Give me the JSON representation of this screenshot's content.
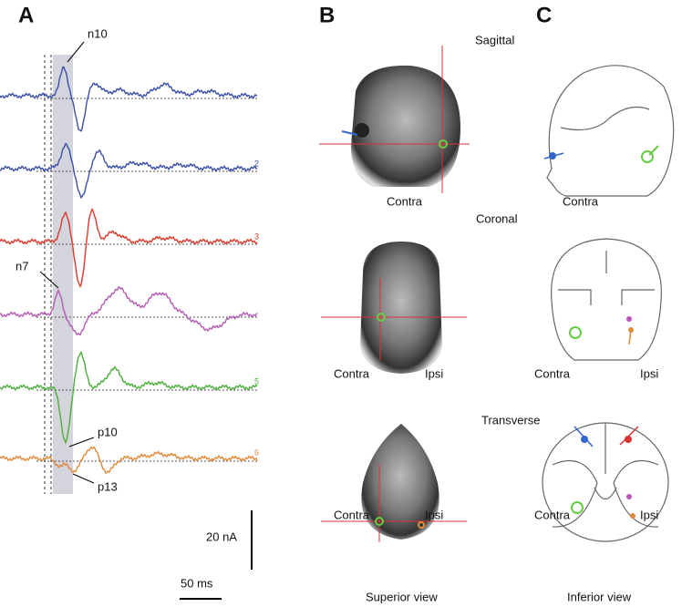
{
  "panel_labels": [
    "A",
    "B",
    "C"
  ],
  "peaks": [
    "n10",
    "n7",
    "p10",
    "p13"
  ],
  "trace_numbers": [
    "2",
    "3",
    "5",
    "6"
  ],
  "scale_bar": {
    "amplitude": "20 nA",
    "time": "50 ms"
  },
  "planes": [
    "Sagittal",
    "Coronal",
    "Transverse"
  ],
  "sides": {
    "contra": "Contra",
    "ipsi": "Ipsi"
  },
  "view_labels": [
    "Superior view",
    "Inferior view"
  ]
}
